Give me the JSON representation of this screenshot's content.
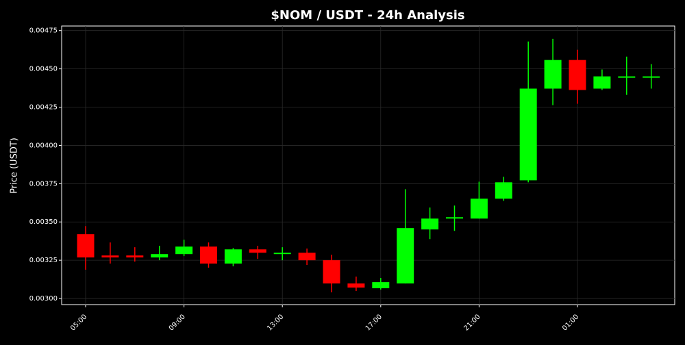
{
  "chart_data": {
    "type": "candlestick",
    "title": "$NOM / USDT - 24h Analysis",
    "y_label": "Price (USDT)",
    "categories": [
      "05:00",
      null,
      null,
      null,
      "09:00",
      null,
      null,
      null,
      "13:00",
      null,
      null,
      null,
      "17:00",
      null,
      null,
      null,
      "21:00",
      null,
      null,
      null,
      "01:00",
      null,
      null,
      null
    ],
    "open": [
      0.00342,
      0.003281,
      0.003281,
      0.003268,
      0.00329,
      0.003339,
      0.003228,
      0.003321,
      0.00329,
      0.003299,
      0.00325,
      0.003098,
      0.003067,
      0.003098,
      0.003451,
      0.003522,
      0.003522,
      0.003652,
      0.003772,
      0.004371,
      0.004558,
      0.004371,
      0.004442,
      0.004451
    ],
    "high": [
      0.003473,
      0.003366,
      0.003335,
      0.003344,
      0.003384,
      0.003366,
      0.00333,
      0.003344,
      0.003335,
      0.003326,
      0.003286,
      0.003143,
      0.003134,
      0.003714,
      0.003594,
      0.003607,
      0.003763,
      0.003795,
      0.004679,
      0.004696,
      0.004625,
      0.004496,
      0.00458,
      0.004531
    ],
    "low": [
      0.003188,
      0.003228,
      0.003241,
      0.00325,
      0.003277,
      0.003201,
      0.00321,
      0.003259,
      0.00325,
      0.003219,
      0.00304,
      0.003049,
      0.003058,
      0.003098,
      0.003388,
      0.003442,
      0.003522,
      0.003638,
      0.003759,
      0.004263,
      0.004272,
      0.004362,
      0.00433,
      0.004371
    ],
    "close": [
      0.003268,
      0.003268,
      0.003268,
      0.00329,
      0.003339,
      0.003228,
      0.003321,
      0.003299,
      0.003299,
      0.00325,
      0.003098,
      0.003071,
      0.003107,
      0.00346,
      0.003522,
      0.003531,
      0.003652,
      0.003759,
      0.004371,
      0.004558,
      0.004362,
      0.004451,
      0.004451,
      0.004451
    ],
    "up_color": "#00ff00",
    "down_color": "#ff0000",
    "ylim": [
      0.00296,
      0.00478
    ],
    "yticks": [
      {
        "value": 0.003,
        "label": "0.00300"
      },
      0.00325,
      {
        "value": 0.0035,
        "label": "0.00350"
      },
      0.00375,
      {
        "value": 0.004,
        "label": "0.00400"
      },
      0.00425,
      {
        "value": 0.0045,
        "label": "0.00450"
      },
      0.00475
    ],
    "grid": true
  }
}
